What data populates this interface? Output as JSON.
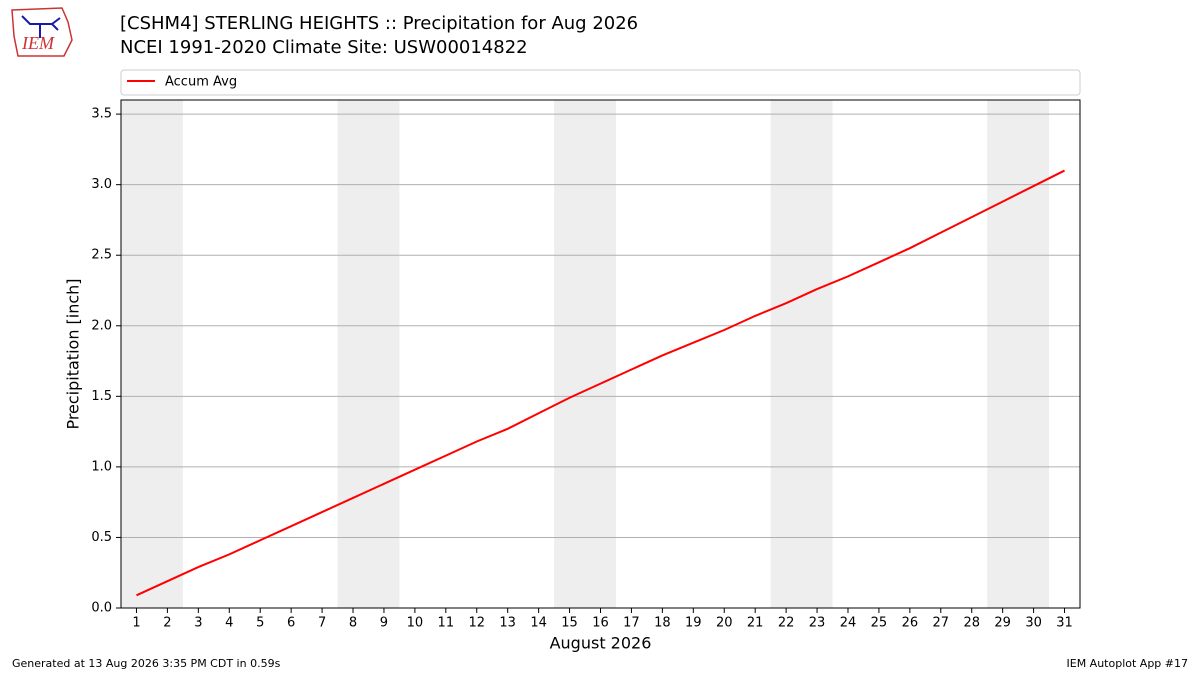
{
  "logo": {
    "text": "IEM"
  },
  "footer": {
    "left": "Generated at 13 Aug 2026 3:35 PM CDT in 0.59s",
    "right": "IEM Autoplot App #17"
  },
  "chart_data": {
    "type": "line",
    "title": "[CSHM4] STERLING HEIGHTS :: Precipitation for Aug 2026",
    "subtitle": "NCEI 1991-2020 Climate Site: USW00014822",
    "x_label": "August 2026",
    "y_label": "Precipitation [inch]",
    "x": [
      1,
      2,
      3,
      4,
      5,
      6,
      7,
      8,
      9,
      10,
      11,
      12,
      13,
      14,
      15,
      16,
      17,
      18,
      19,
      20,
      21,
      22,
      23,
      24,
      25,
      26,
      27,
      28,
      29,
      30,
      31
    ],
    "series": [
      {
        "name": "Accum Avg",
        "color": "#ff0000",
        "values": [
          0.09,
          0.19,
          0.29,
          0.38,
          0.48,
          0.58,
          0.68,
          0.78,
          0.88,
          0.98,
          1.08,
          1.18,
          1.27,
          1.38,
          1.49,
          1.59,
          1.69,
          1.79,
          1.88,
          1.97,
          2.07,
          2.16,
          2.26,
          2.35,
          2.45,
          2.55,
          2.66,
          2.77,
          2.88,
          2.99,
          3.1
        ]
      }
    ],
    "xlim": [
      0.5,
      31.5
    ],
    "xticks": [
      1,
      2,
      3,
      4,
      5,
      6,
      7,
      8,
      9,
      10,
      11,
      12,
      13,
      14,
      15,
      16,
      17,
      18,
      19,
      20,
      21,
      22,
      23,
      24,
      25,
      26,
      27,
      28,
      29,
      30,
      31
    ],
    "ylim": [
      0,
      3.6
    ],
    "yticks": [
      {
        "value": 0,
        "label": "0.0"
      },
      0.5,
      {
        "value": 1,
        "label": "1.0"
      },
      1.5,
      {
        "value": 2,
        "label": "2.0"
      },
      2.5,
      {
        "value": 3,
        "label": "3.0"
      },
      3.5
    ],
    "grid": "y",
    "legend": "top",
    "weekend_spans": [
      [
        0.5,
        2.5
      ],
      [
        7.5,
        9.5
      ],
      [
        14.5,
        16.5
      ],
      [
        21.5,
        23.5
      ],
      [
        28.5,
        30.5
      ]
    ],
    "weekend_color": "#eeeeee"
  }
}
